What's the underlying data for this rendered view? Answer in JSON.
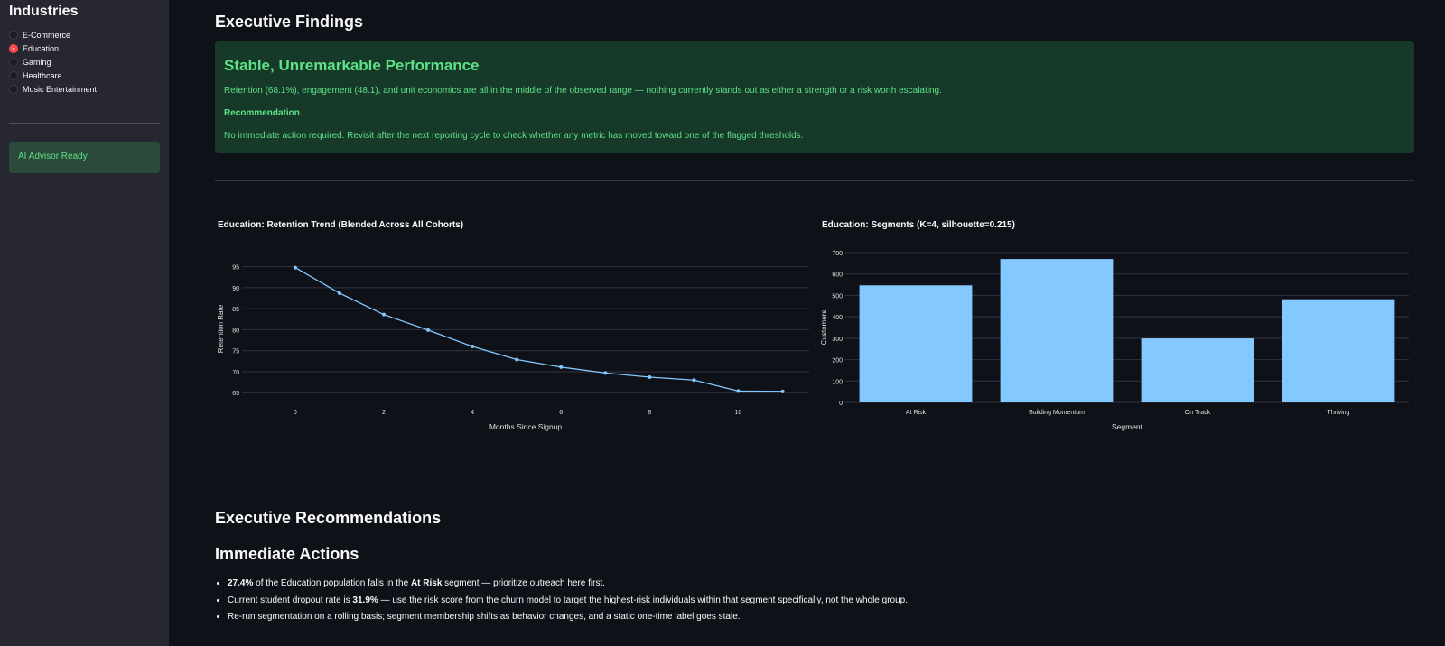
{
  "sidebar": {
    "title": "Industries",
    "items": [
      {
        "label": "E-Commerce",
        "selected": false
      },
      {
        "label": "Education",
        "selected": true
      },
      {
        "label": "Gaming",
        "selected": false
      },
      {
        "label": "Healthcare",
        "selected": false
      },
      {
        "label": "Music Entertainment",
        "selected": false
      }
    ],
    "advisor_status": "AI Advisor Ready"
  },
  "findings": {
    "heading": "Executive Findings",
    "card_title": "Stable, Unremarkable Performance",
    "summary": "Retention (68.1%), engagement (48.1), and unit economics are all in the middle of the observed range — nothing currently stands out as either a strength or a risk worth escalating.",
    "rec_label": "Recommendation",
    "rec_text": "No immediate action required. Revisit after the next reporting cycle to check whether any metric has moved toward one of the flagged thresholds."
  },
  "chart_data": [
    {
      "type": "line",
      "title": "Education: Retention Trend (Blended Across All Cohorts)",
      "xlabel": "Months Since Signup",
      "ylabel": "Retention Rate",
      "x": [
        0,
        1,
        2,
        3,
        4,
        5,
        6,
        7,
        8,
        9,
        10,
        11
      ],
      "y": [
        94.8,
        88.7,
        83.6,
        79.9,
        76.0,
        72.9,
        71.1,
        69.7,
        68.7,
        68.0,
        65.4,
        65.3
      ],
      "xticks": [
        "0",
        "2",
        "4",
        "6",
        "8",
        "10"
      ],
      "yticks": [
        "65",
        "70",
        "75",
        "80",
        "85",
        "90",
        "95"
      ],
      "color": "#83c9ff"
    },
    {
      "type": "bar",
      "title": "Education: Segments (K=4, silhouette=0.215)",
      "xlabel": "Segment",
      "ylabel": "Customers",
      "categories": [
        "At Risk",
        "Building Momentum",
        "On Track",
        "Thriving"
      ],
      "values": [
        547,
        670,
        299,
        482
      ],
      "ylim": [
        0,
        700
      ],
      "yticks": [
        "0",
        "100",
        "200",
        "300",
        "400",
        "500",
        "600",
        "700"
      ],
      "color": "#83c9ff"
    }
  ],
  "recommendations": {
    "heading": "Executive Recommendations",
    "subheading": "Immediate Actions",
    "bullets": [
      {
        "b1": "27.4%",
        "t1": " of the Education population falls in the ",
        "b2": "At Risk",
        "t2": " segment — prioritize outreach here first."
      },
      {
        "t0": "Current student dropout rate is ",
        "b1": "31.9%",
        "t1": " — use the risk score from the churn model to target the highest-risk individuals within that segment specifically, not the whole group."
      },
      {
        "t0": "Re-run segmentation on a rolling basis; segment membership shifts as behavior changes, and a static one-time label goes stale."
      }
    ]
  }
}
